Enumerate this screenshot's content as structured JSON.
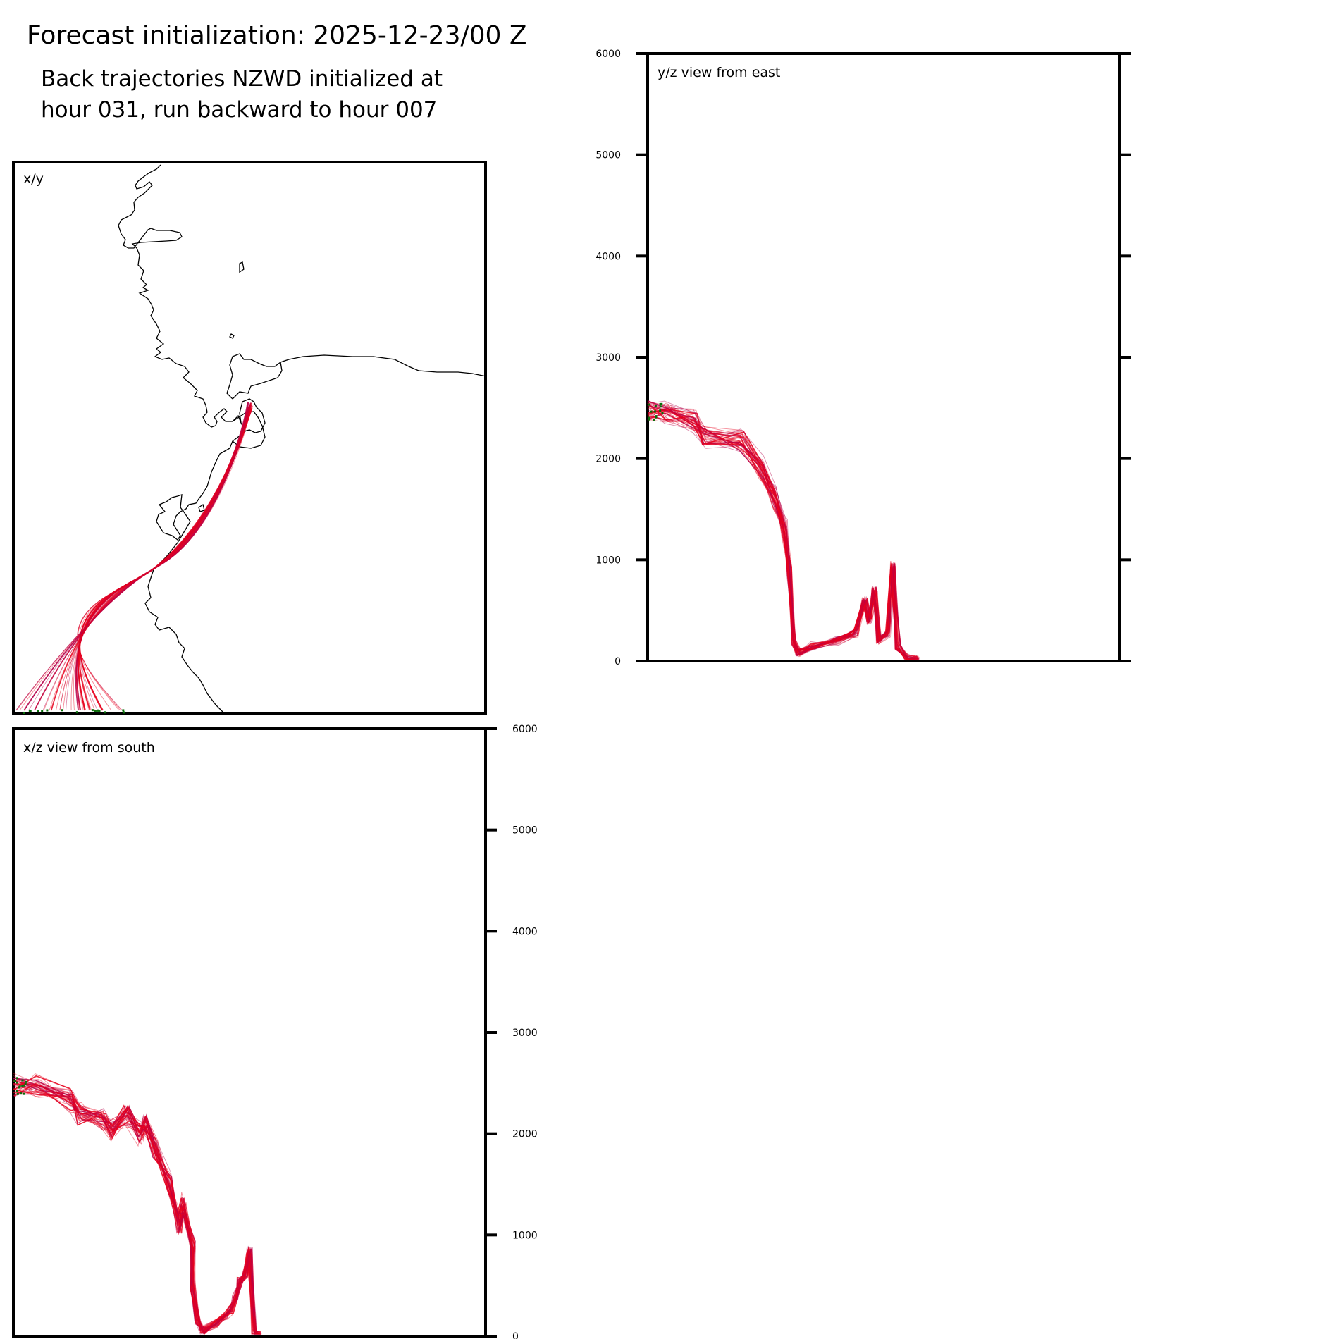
{
  "title": "Forecast initialization: 2025-12-23/00 Z",
  "subtitle": [
    "Back trajectories NZWD initialized at",
    "hour 031, run backward to hour 007"
  ],
  "colors": {
    "trajectory": "#e8001c",
    "trajectory_dark": "#b5004a",
    "coast": "#000000",
    "marker": "#0a6e0a"
  },
  "chart_data": [
    {
      "type": "line",
      "panel": "x/y",
      "label": "x/y",
      "description_of_series": "trajectory paths from NZWD area running to the lower-left corner; coastline outline",
      "title": "",
      "xlabel": "",
      "ylabel": ""
    },
    {
      "type": "line",
      "panel": "y/z",
      "label": "y/z view from east",
      "ylim": [
        0,
        6000
      ],
      "yticks": [
        "0",
        "1000",
        "2000",
        "3000",
        "4000",
        "5000",
        "6000"
      ],
      "height_profile": [
        [
          0.0,
          2470
        ],
        [
          0.04,
          2460
        ],
        [
          0.1,
          2380
        ],
        [
          0.12,
          2220
        ],
        [
          0.2,
          2180
        ],
        [
          0.24,
          1900
        ],
        [
          0.27,
          1600
        ],
        [
          0.29,
          1300
        ],
        [
          0.3,
          900
        ],
        [
          0.31,
          200
        ],
        [
          0.32,
          80
        ],
        [
          0.35,
          150
        ],
        [
          0.4,
          200
        ],
        [
          0.44,
          280
        ],
        [
          0.46,
          600
        ],
        [
          0.47,
          400
        ],
        [
          0.48,
          700
        ],
        [
          0.49,
          200
        ],
        [
          0.51,
          280
        ],
        [
          0.52,
          950
        ],
        [
          0.53,
          150
        ],
        [
          0.55,
          30
        ],
        [
          0.57,
          20
        ]
      ]
    },
    {
      "type": "line",
      "panel": "x/z",
      "label": "x/z view from south",
      "ylim": [
        0,
        6000
      ],
      "yticks": [
        "0",
        "1000",
        "2000",
        "3000",
        "4000",
        "5000",
        "6000"
      ],
      "height_profile": [
        [
          0.0,
          2480
        ],
        [
          0.05,
          2470
        ],
        [
          0.12,
          2330
        ],
        [
          0.14,
          2200
        ],
        [
          0.19,
          2130
        ],
        [
          0.21,
          2050
        ],
        [
          0.24,
          2180
        ],
        [
          0.27,
          2000
        ],
        [
          0.28,
          2100
        ],
        [
          0.3,
          1850
        ],
        [
          0.33,
          1500
        ],
        [
          0.35,
          1100
        ],
        [
          0.36,
          1300
        ],
        [
          0.38,
          900
        ],
        [
          0.38,
          500
        ],
        [
          0.39,
          150
        ],
        [
          0.4,
          50
        ],
        [
          0.43,
          120
        ],
        [
          0.45,
          200
        ],
        [
          0.46,
          250
        ],
        [
          0.47,
          380
        ],
        [
          0.48,
          550
        ],
        [
          0.49,
          600
        ],
        [
          0.5,
          850
        ],
        [
          0.51,
          30
        ],
        [
          0.52,
          20
        ]
      ]
    }
  ]
}
